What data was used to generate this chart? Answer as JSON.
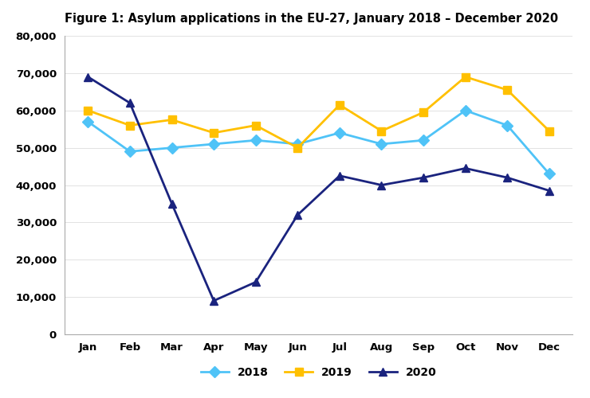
{
  "title": "Figure 1: Asylum applications in the EU-27, January 2018 – December 2020",
  "months": [
    "Jan",
    "Feb",
    "Mar",
    "Apr",
    "May",
    "Jun",
    "Jul",
    "Aug",
    "Sep",
    "Oct",
    "Nov",
    "Dec"
  ],
  "series": {
    "2018": [
      57000,
      49000,
      50000,
      51000,
      52000,
      51000,
      54000,
      51000,
      52000,
      60000,
      56000,
      43000
    ],
    "2019": [
      60000,
      56000,
      57500,
      54000,
      56000,
      50000,
      61500,
      54500,
      59500,
      69000,
      65500,
      54500
    ],
    "2020": [
      69000,
      62000,
      35000,
      9000,
      14000,
      32000,
      42500,
      40000,
      42000,
      44500,
      42000,
      38500
    ]
  },
  "colors": {
    "2018": "#4FC3F7",
    "2019": "#FFC000",
    "2020": "#1A237E"
  },
  "markers": {
    "2018": "D",
    "2019": "s",
    "2020": "^"
  },
  "ylim": [
    0,
    80000
  ],
  "yticks": [
    0,
    10000,
    20000,
    30000,
    40000,
    50000,
    60000,
    70000,
    80000
  ],
  "background_color": "#FFFFFF",
  "title_fontsize": 10.5,
  "tick_fontsize": 9.5,
  "legend_fontsize": 10
}
